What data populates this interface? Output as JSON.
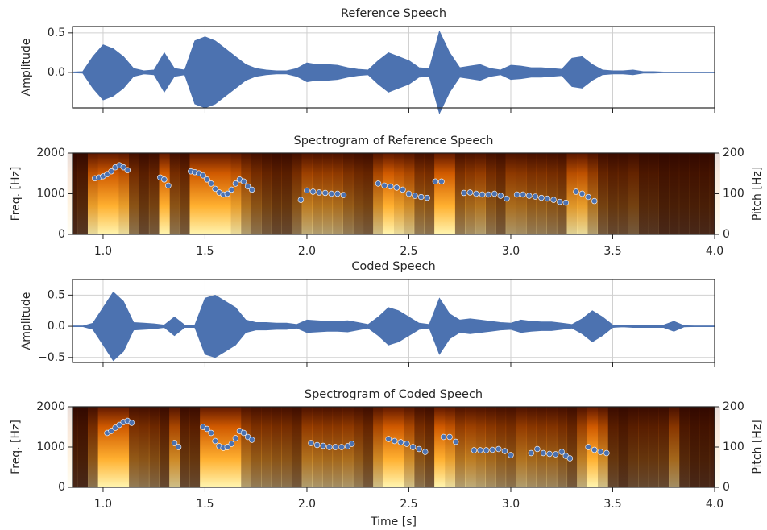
{
  "chart_data": [
    {
      "type": "waveform",
      "title": "Reference Speech",
      "ylabel": "Amplitude",
      "color": "#4c72b0",
      "grid": true,
      "xlim": [
        0.85,
        4.0
      ],
      "xticks": [
        1.0,
        1.5,
        2.0,
        2.5,
        3.0,
        3.5,
        4.0
      ],
      "ylim": [
        -0.45,
        0.58
      ],
      "yticks": [
        {
          "value": 0,
          "label": "0.0"
        },
        0.5
      ],
      "x": [
        0.85,
        0.9,
        0.95,
        1.0,
        1.05,
        1.1,
        1.15,
        1.2,
        1.25,
        1.3,
        1.35,
        1.4,
        1.45,
        1.5,
        1.55,
        1.6,
        1.65,
        1.7,
        1.75,
        1.8,
        1.85,
        1.9,
        1.95,
        2.0,
        2.05,
        2.1,
        2.15,
        2.2,
        2.25,
        2.3,
        2.35,
        2.4,
        2.45,
        2.5,
        2.55,
        2.6,
        2.65,
        2.7,
        2.75,
        2.8,
        2.85,
        2.9,
        2.95,
        3.0,
        3.05,
        3.1,
        3.15,
        3.2,
        3.25,
        3.3,
        3.35,
        3.4,
        3.45,
        3.5,
        3.55,
        3.6,
        3.65,
        3.7,
        3.75,
        3.8,
        3.85,
        3.9,
        3.95,
        4.0
      ],
      "values": [
        0.005,
        0.01,
        0.2,
        0.35,
        0.3,
        0.2,
        0.05,
        0.02,
        0.03,
        0.25,
        0.05,
        0.03,
        0.4,
        0.45,
        0.4,
        0.3,
        0.2,
        0.1,
        0.05,
        0.03,
        0.02,
        0.02,
        0.05,
        0.12,
        0.1,
        0.1,
        0.09,
        0.06,
        0.04,
        0.03,
        0.15,
        0.25,
        0.2,
        0.15,
        0.06,
        0.05,
        0.52,
        0.25,
        0.06,
        0.08,
        0.1,
        0.05,
        0.03,
        0.09,
        0.08,
        0.06,
        0.06,
        0.05,
        0.04,
        0.18,
        0.2,
        0.1,
        0.03,
        0.02,
        0.02,
        0.03,
        0.01,
        0.01,
        0.005,
        0.005,
        0.005,
        0.005,
        0.005,
        0.005
      ]
    },
    {
      "type": "spectrogram",
      "title": "Spectrogram of Reference Speech",
      "ylabel": "Freq. [Hz]",
      "y2label": "Pitch [Hz]",
      "color": "#4c72b0",
      "xlim": [
        0.85,
        4.0
      ],
      "xticks": [
        {
          "value": 1.0,
          "label": "1.0"
        },
        1.5,
        {
          "value": 2.0,
          "label": "2.0"
        },
        2.5,
        {
          "value": 3.0,
          "label": "3.0"
        },
        3.5,
        {
          "value": 4.0,
          "label": "4.0"
        }
      ],
      "ylim": [
        0,
        2000
      ],
      "yticks": [
        0,
        1000,
        2000
      ],
      "y2lim": [
        0,
        200
      ],
      "y2ticks": [
        0,
        100,
        200
      ],
      "x": [
        0.96,
        0.98,
        1.0,
        1.02,
        1.04,
        1.06,
        1.08,
        1.1,
        1.12,
        1.28,
        1.3,
        1.32,
        1.43,
        1.45,
        1.47,
        1.49,
        1.51,
        1.53,
        1.55,
        1.57,
        1.59,
        1.61,
        1.63,
        1.65,
        1.67,
        1.69,
        1.71,
        1.73,
        1.97,
        2.0,
        2.03,
        2.06,
        2.09,
        2.12,
        2.15,
        2.18,
        2.35,
        2.38,
        2.41,
        2.44,
        2.47,
        2.5,
        2.53,
        2.56,
        2.59,
        2.63,
        2.66,
        2.77,
        2.8,
        2.83,
        2.86,
        2.89,
        2.92,
        2.95,
        2.98,
        3.03,
        3.06,
        3.09,
        3.12,
        3.15,
        3.18,
        3.21,
        3.24,
        3.27,
        3.32,
        3.35,
        3.38,
        3.41
      ],
      "values": [
        138,
        140,
        143,
        148,
        155,
        165,
        170,
        165,
        158,
        140,
        135,
        120,
        155,
        153,
        150,
        145,
        135,
        125,
        112,
        103,
        98,
        100,
        110,
        125,
        135,
        130,
        118,
        110,
        85,
        108,
        105,
        103,
        102,
        100,
        100,
        97,
        125,
        120,
        118,
        115,
        110,
        100,
        95,
        92,
        90,
        130,
        130,
        102,
        103,
        100,
        98,
        98,
        100,
        95,
        88,
        98,
        98,
        95,
        93,
        90,
        88,
        85,
        80,
        78,
        105,
        100,
        92,
        82
      ]
    },
    {
      "type": "waveform",
      "title": "Coded Speech",
      "ylabel": "Amplitude",
      "color": "#4c72b0",
      "grid": true,
      "xlim": [
        0.85,
        4.0
      ],
      "xticks": [
        1.0,
        1.5,
        2.0,
        2.5,
        3.0,
        3.5,
        4.0
      ],
      "ylim": [
        -0.58,
        0.75
      ],
      "yticks": [
        {
          "value": -0.5,
          "label": "−0.5"
        },
        {
          "value": 0,
          "label": "0.0"
        },
        0.5
      ],
      "x": [
        0.85,
        0.9,
        0.95,
        1.0,
        1.05,
        1.1,
        1.15,
        1.2,
        1.25,
        1.3,
        1.35,
        1.4,
        1.45,
        1.5,
        1.55,
        1.6,
        1.65,
        1.7,
        1.75,
        1.8,
        1.85,
        1.9,
        1.95,
        2.0,
        2.05,
        2.1,
        2.15,
        2.2,
        2.25,
        2.3,
        2.35,
        2.4,
        2.45,
        2.5,
        2.55,
        2.6,
        2.65,
        2.7,
        2.75,
        2.8,
        2.85,
        2.9,
        2.95,
        3.0,
        3.05,
        3.1,
        3.15,
        3.2,
        3.25,
        3.3,
        3.35,
        3.4,
        3.45,
        3.5,
        3.55,
        3.6,
        3.65,
        3.7,
        3.75,
        3.8,
        3.85,
        3.9,
        3.95,
        4.0
      ],
      "values": [
        0.005,
        0.005,
        0.05,
        0.3,
        0.55,
        0.4,
        0.06,
        0.05,
        0.04,
        0.02,
        0.15,
        0.02,
        0.02,
        0.45,
        0.5,
        0.4,
        0.3,
        0.1,
        0.06,
        0.06,
        0.05,
        0.05,
        0.03,
        0.1,
        0.09,
        0.08,
        0.08,
        0.09,
        0.06,
        0.03,
        0.15,
        0.3,
        0.25,
        0.15,
        0.05,
        0.03,
        0.45,
        0.2,
        0.1,
        0.12,
        0.1,
        0.08,
        0.06,
        0.05,
        0.1,
        0.08,
        0.07,
        0.07,
        0.05,
        0.03,
        0.12,
        0.25,
        0.15,
        0.02,
        0.01,
        0.02,
        0.02,
        0.02,
        0.02,
        0.08,
        0.01,
        0.005,
        0.005,
        0.005
      ]
    },
    {
      "type": "spectrogram",
      "title": "Spectrogram of Coded Speech",
      "ylabel": "Freq. [Hz]",
      "y2label": "Pitch [Hz]",
      "xlabel": "Time [s]",
      "color": "#4c72b0",
      "xlim": [
        0.85,
        4.0
      ],
      "xticks": [
        {
          "value": 1.0,
          "label": "1.0"
        },
        1.5,
        {
          "value": 2.0,
          "label": "2.0"
        },
        2.5,
        {
          "value": 3.0,
          "label": "3.0"
        },
        3.5,
        {
          "value": 4.0,
          "label": "4.0"
        }
      ],
      "ylim": [
        0,
        2000
      ],
      "yticks": [
        0,
        1000,
        2000
      ],
      "y2lim": [
        0,
        200
      ],
      "y2ticks": [
        0,
        100,
        200
      ],
      "x": [
        1.02,
        1.04,
        1.06,
        1.08,
        1.1,
        1.12,
        1.14,
        1.35,
        1.37,
        1.49,
        1.51,
        1.53,
        1.55,
        1.57,
        1.59,
        1.61,
        1.63,
        1.65,
        1.67,
        1.69,
        1.71,
        1.73,
        2.02,
        2.05,
        2.08,
        2.11,
        2.14,
        2.17,
        2.2,
        2.22,
        2.4,
        2.43,
        2.46,
        2.49,
        2.52,
        2.55,
        2.58,
        2.67,
        2.7,
        2.73,
        2.82,
        2.85,
        2.88,
        2.91,
        2.94,
        2.97,
        3.0,
        3.1,
        3.13,
        3.16,
        3.19,
        3.22,
        3.25,
        3.27,
        3.29,
        3.38,
        3.41,
        3.44,
        3.47
      ],
      "values": [
        135,
        140,
        148,
        155,
        162,
        165,
        160,
        110,
        100,
        150,
        145,
        135,
        115,
        102,
        98,
        100,
        108,
        122,
        140,
        135,
        125,
        118,
        110,
        105,
        103,
        100,
        100,
        100,
        102,
        108,
        120,
        115,
        112,
        108,
        100,
        95,
        88,
        125,
        125,
        113,
        92,
        92,
        92,
        93,
        95,
        90,
        80,
        85,
        95,
        85,
        83,
        82,
        88,
        78,
        72,
        100,
        93,
        88,
        85
      ]
    }
  ]
}
